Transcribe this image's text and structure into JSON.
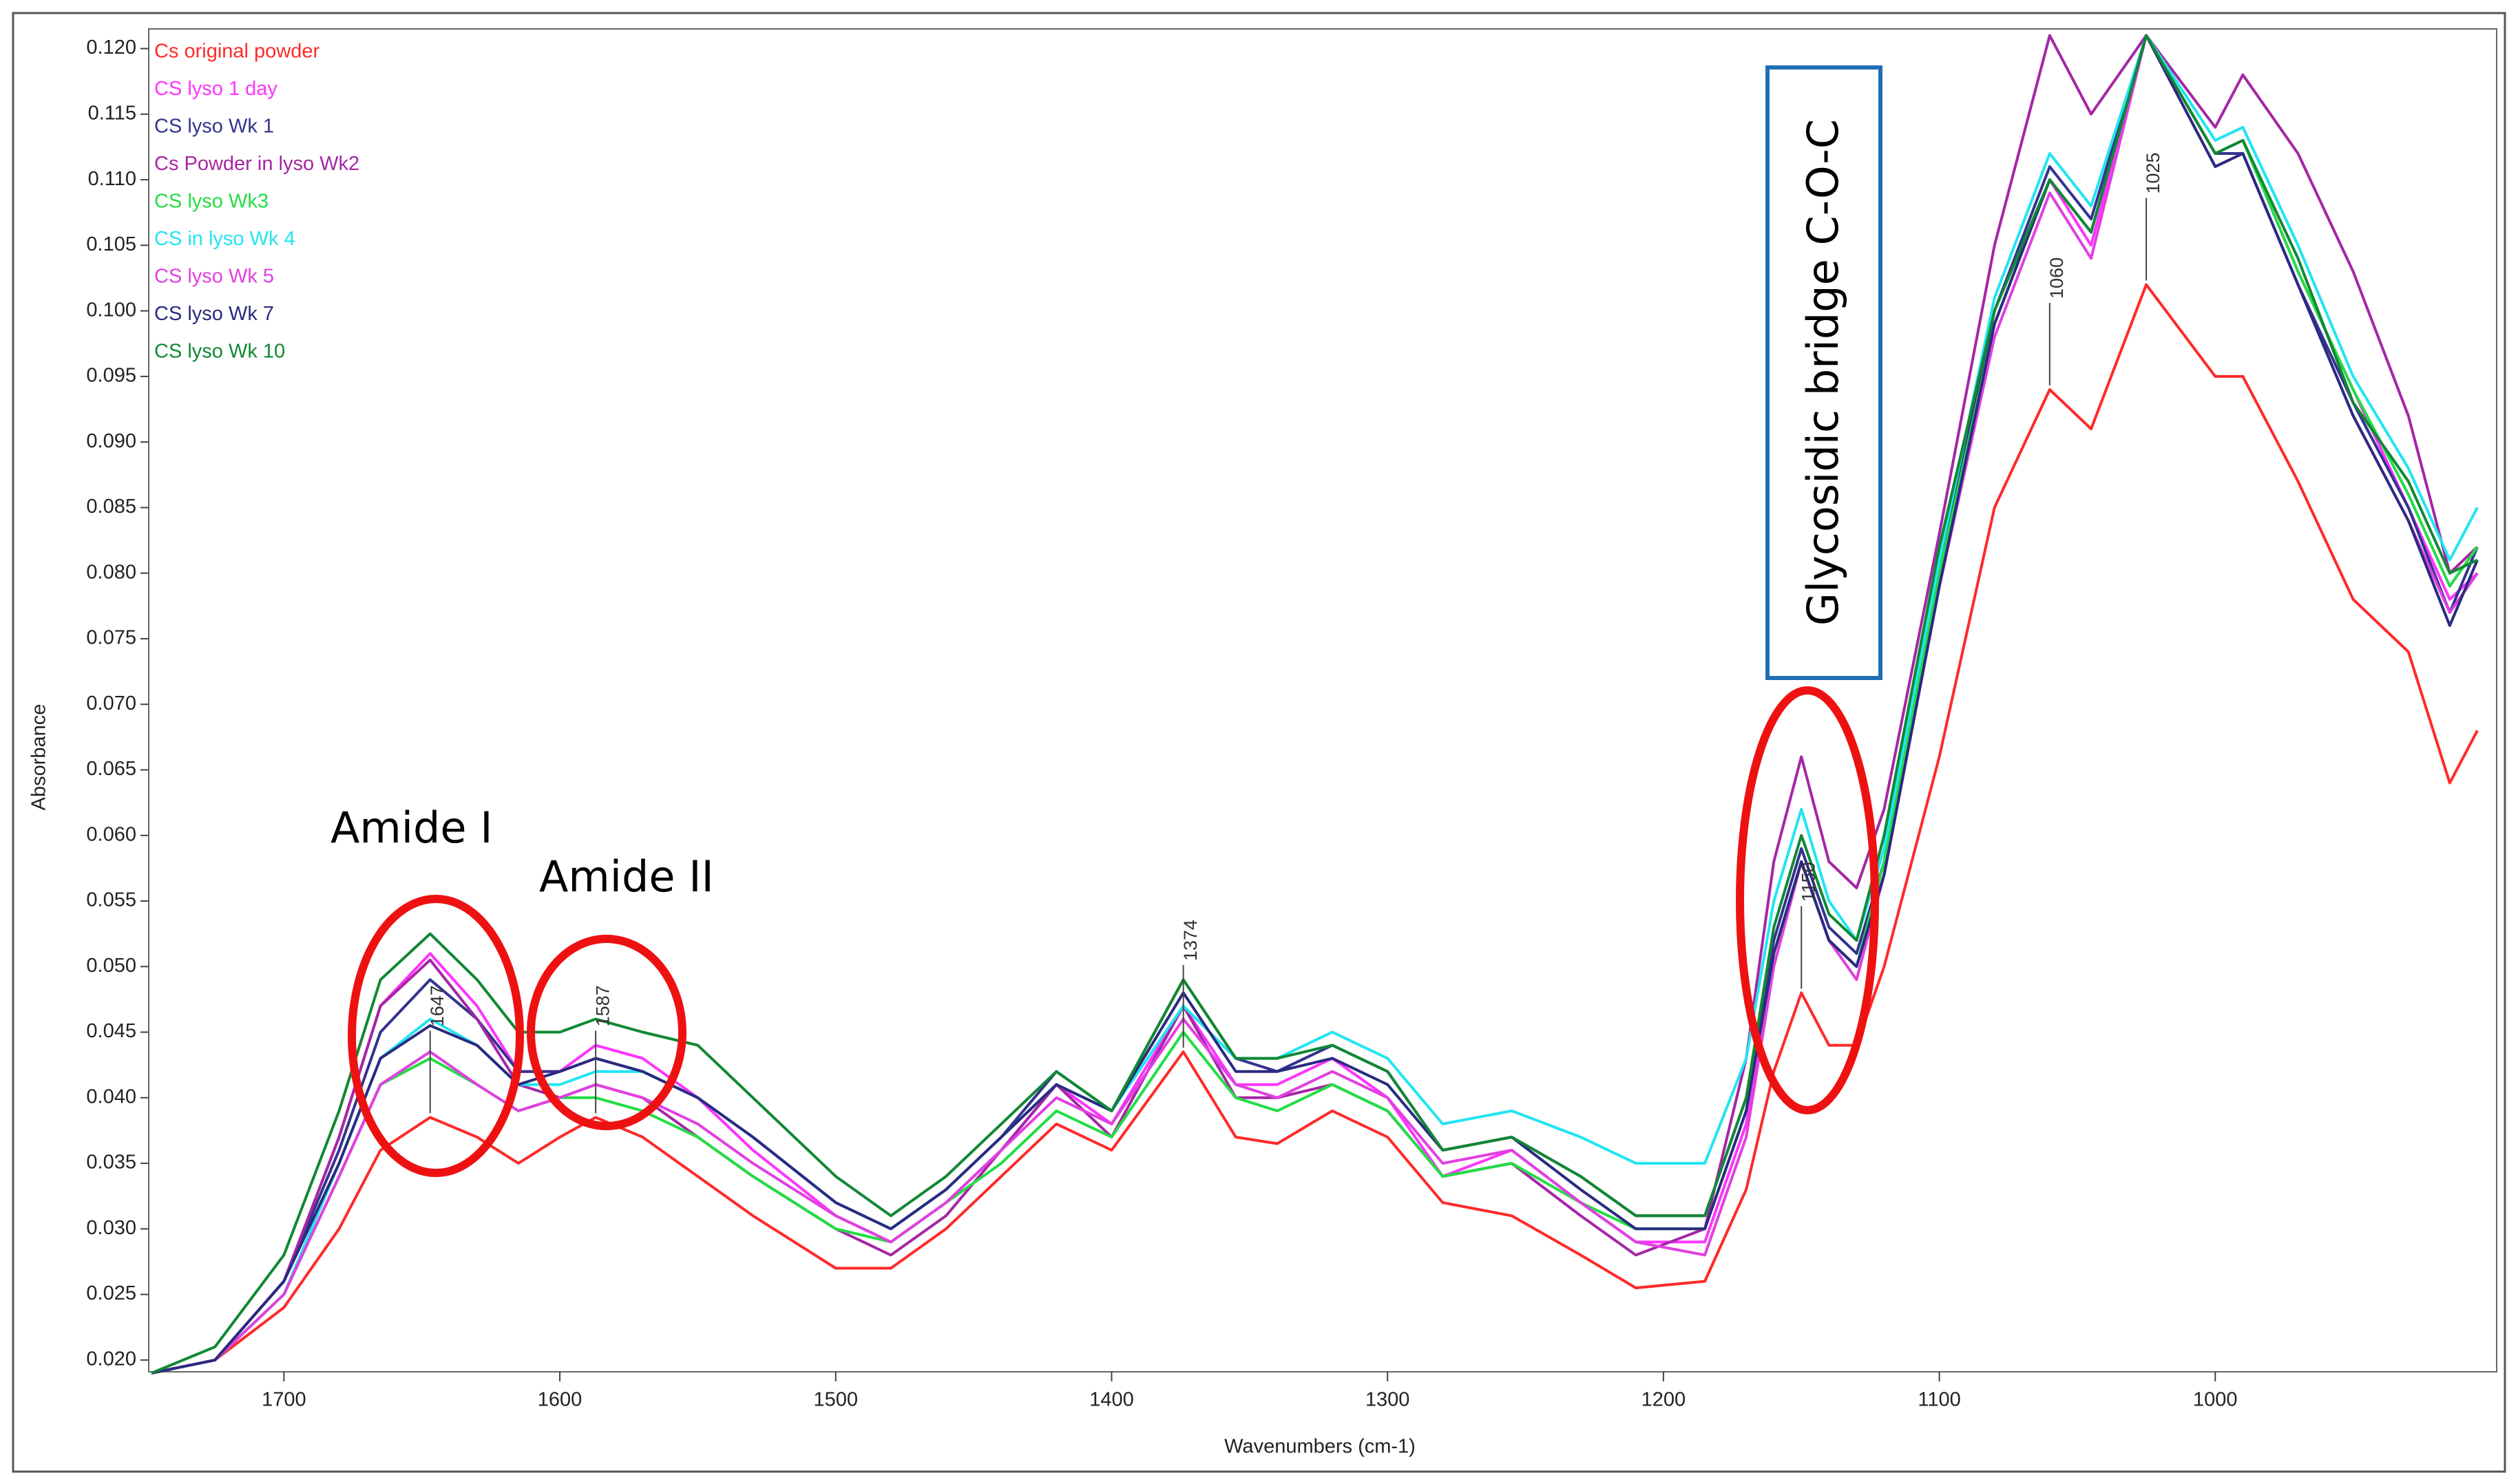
{
  "chart_data": {
    "type": "line",
    "x_label": "Wavenumbers (cm-1)",
    "y_label": "Absorbance",
    "xlim": [
      1749,
      898
    ],
    "ylim": [
      0.0191,
      0.1215
    ],
    "xticks": [
      1700,
      1600,
      1500,
      1400,
      1300,
      1200,
      1100,
      1000
    ],
    "yticks": [
      {
        "value": 0.02,
        "label": "0.020"
      },
      0.025,
      {
        "value": 0.03,
        "label": "0.030"
      },
      0.035,
      {
        "value": 0.04,
        "label": "0.040"
      },
      0.045,
      {
        "value": 0.05,
        "label": "0.050"
      },
      0.055,
      {
        "value": 0.06,
        "label": "0.060"
      },
      0.065,
      {
        "value": 0.07,
        "label": "0.070"
      },
      0.075,
      {
        "value": 0.08,
        "label": "0.080"
      },
      0.085,
      {
        "value": 0.09,
        "label": "0.090"
      },
      0.095,
      {
        "value": 0.1,
        "label": "0.100"
      },
      0.105,
      {
        "value": 0.11,
        "label": "0.110"
      },
      0.115,
      {
        "value": 0.12,
        "label": "0.120"
      }
    ],
    "peak_labels": [
      1647,
      1587,
      1374,
      1150,
      1060,
      1025
    ],
    "annotations": {
      "amide_1": "Amide I",
      "amide_2": "Amide II",
      "glycosidic": "Glycosidic bridge C-O-C"
    },
    "x": [
      1748,
      1725,
      1700,
      1680,
      1665,
      1647,
      1630,
      1615,
      1600,
      1587,
      1570,
      1550,
      1530,
      1500,
      1480,
      1460,
      1440,
      1420,
      1400,
      1374,
      1355,
      1340,
      1320,
      1300,
      1280,
      1255,
      1230,
      1210,
      1185,
      1170,
      1160,
      1150,
      1140,
      1130,
      1120,
      1100,
      1080,
      1060,
      1045,
      1025,
      1000,
      990,
      970,
      950,
      930,
      915,
      905
    ],
    "series": [
      {
        "name": "Cs original powder",
        "color": "#ff2a2a",
        "values": [
          0.019,
          0.02,
          0.024,
          0.03,
          0.036,
          0.0385,
          0.037,
          0.035,
          0.037,
          0.0385,
          0.037,
          0.034,
          0.031,
          0.027,
          0.027,
          0.03,
          0.034,
          0.038,
          0.036,
          0.0435,
          0.037,
          0.0365,
          0.039,
          0.037,
          0.032,
          0.031,
          0.028,
          0.0255,
          0.026,
          0.033,
          0.042,
          0.048,
          0.044,
          0.044,
          0.05,
          0.066,
          0.085,
          0.094,
          0.091,
          0.102,
          0.095,
          0.095,
          0.087,
          0.078,
          0.074,
          0.064,
          0.068
        ]
      },
      {
        "name": "CS lyso 1 day",
        "color": "#ff33ff",
        "values": [
          0.019,
          0.02,
          0.026,
          0.037,
          0.047,
          0.051,
          0.047,
          0.042,
          0.042,
          0.044,
          0.043,
          0.04,
          0.036,
          0.031,
          0.029,
          0.032,
          0.036,
          0.041,
          0.038,
          0.047,
          0.041,
          0.041,
          0.043,
          0.04,
          0.034,
          0.036,
          0.032,
          0.029,
          0.029,
          0.038,
          0.051,
          0.058,
          0.052,
          0.05,
          0.057,
          0.079,
          0.099,
          0.11,
          0.105,
          0.121,
          0.112,
          0.113,
          0.103,
          0.094,
          0.085,
          0.078,
          0.08
        ]
      },
      {
        "name": "CS lyso Wk 1",
        "color": "#33338f",
        "values": [
          0.019,
          0.02,
          0.026,
          0.036,
          0.045,
          0.049,
          0.046,
          0.042,
          0.042,
          0.043,
          0.042,
          0.04,
          0.037,
          0.032,
          0.03,
          0.033,
          0.037,
          0.042,
          0.039,
          0.049,
          0.043,
          0.042,
          0.044,
          0.042,
          0.036,
          0.037,
          0.034,
          0.031,
          0.031,
          0.04,
          0.052,
          0.059,
          0.053,
          0.051,
          0.058,
          0.08,
          0.1,
          0.111,
          0.107,
          0.121,
          0.112,
          0.112,
          0.102,
          0.093,
          0.085,
          0.077,
          0.082
        ]
      },
      {
        "name": "Cs Powder in lyso Wk2",
        "color": "#a526a5",
        "values": [
          0.019,
          0.02,
          0.026,
          0.037,
          0.047,
          0.0505,
          0.046,
          0.041,
          0.04,
          0.041,
          0.04,
          0.037,
          0.034,
          0.03,
          0.028,
          0.031,
          0.036,
          0.041,
          0.037,
          0.047,
          0.04,
          0.04,
          0.041,
          0.039,
          0.034,
          0.035,
          0.031,
          0.028,
          0.03,
          0.043,
          0.058,
          0.066,
          0.058,
          0.056,
          0.062,
          0.083,
          0.105,
          0.121,
          0.115,
          0.121,
          0.114,
          0.118,
          0.112,
          0.103,
          0.092,
          0.08,
          0.082
        ]
      },
      {
        "name": "CS lyso Wk3",
        "color": "#22dd44",
        "values": [
          0.019,
          0.02,
          0.025,
          0.034,
          0.041,
          0.043,
          0.041,
          0.039,
          0.04,
          0.04,
          0.039,
          0.037,
          0.034,
          0.03,
          0.029,
          0.032,
          0.035,
          0.039,
          0.037,
          0.045,
          0.04,
          0.039,
          0.041,
          0.039,
          0.034,
          0.035,
          0.032,
          0.03,
          0.03,
          0.039,
          0.051,
          0.058,
          0.052,
          0.05,
          0.058,
          0.08,
          0.099,
          0.11,
          0.106,
          0.121,
          0.112,
          0.113,
          0.103,
          0.094,
          0.086,
          0.079,
          0.082
        ]
      },
      {
        "name": "CS in lyso Wk 4",
        "color": "#22e5f2",
        "values": [
          0.019,
          0.02,
          0.025,
          0.035,
          0.043,
          0.046,
          0.044,
          0.041,
          0.041,
          0.042,
          0.042,
          0.04,
          0.037,
          0.032,
          0.03,
          0.033,
          0.037,
          0.041,
          0.039,
          0.047,
          0.043,
          0.043,
          0.045,
          0.043,
          0.038,
          0.039,
          0.037,
          0.035,
          0.035,
          0.043,
          0.055,
          0.062,
          0.055,
          0.052,
          0.059,
          0.081,
          0.101,
          0.112,
          0.108,
          0.121,
          0.113,
          0.114,
          0.105,
          0.095,
          0.088,
          0.081,
          0.085
        ]
      },
      {
        "name": "CS lyso Wk 5",
        "color": "#e040e0",
        "values": [
          0.019,
          0.02,
          0.025,
          0.034,
          0.041,
          0.0435,
          0.041,
          0.039,
          0.04,
          0.041,
          0.04,
          0.038,
          0.035,
          0.031,
          0.029,
          0.032,
          0.036,
          0.04,
          0.038,
          0.046,
          0.041,
          0.04,
          0.042,
          0.04,
          0.035,
          0.036,
          0.032,
          0.029,
          0.028,
          0.037,
          0.05,
          0.058,
          0.052,
          0.049,
          0.057,
          0.079,
          0.098,
          0.109,
          0.104,
          0.121,
          0.111,
          0.112,
          0.102,
          0.092,
          0.084,
          0.077,
          0.08
        ]
      },
      {
        "name": "CS lyso Wk 7",
        "color": "#2a2a80",
        "values": [
          0.019,
          0.02,
          0.026,
          0.035,
          0.043,
          0.0455,
          0.044,
          0.041,
          0.042,
          0.043,
          0.042,
          0.04,
          0.037,
          0.032,
          0.03,
          0.033,
          0.037,
          0.041,
          0.039,
          0.048,
          0.042,
          0.042,
          0.043,
          0.041,
          0.036,
          0.037,
          0.033,
          0.03,
          0.03,
          0.039,
          0.051,
          0.058,
          0.052,
          0.05,
          0.057,
          0.079,
          0.099,
          0.11,
          0.106,
          0.121,
          0.111,
          0.112,
          0.102,
          0.092,
          0.084,
          0.076,
          0.081
        ]
      },
      {
        "name": "CS lyso Wk 10",
        "color": "#118833",
        "values": [
          0.019,
          0.021,
          0.028,
          0.039,
          0.049,
          0.0525,
          0.049,
          0.045,
          0.045,
          0.046,
          0.045,
          0.044,
          0.04,
          0.034,
          0.031,
          0.034,
          0.038,
          0.042,
          0.039,
          0.049,
          0.043,
          0.043,
          0.044,
          0.042,
          0.036,
          0.037,
          0.034,
          0.031,
          0.031,
          0.04,
          0.053,
          0.06,
          0.054,
          0.052,
          0.06,
          0.082,
          0.1,
          0.11,
          0.106,
          0.121,
          0.112,
          0.113,
          0.104,
          0.093,
          0.087,
          0.08,
          0.081
        ]
      }
    ]
  }
}
